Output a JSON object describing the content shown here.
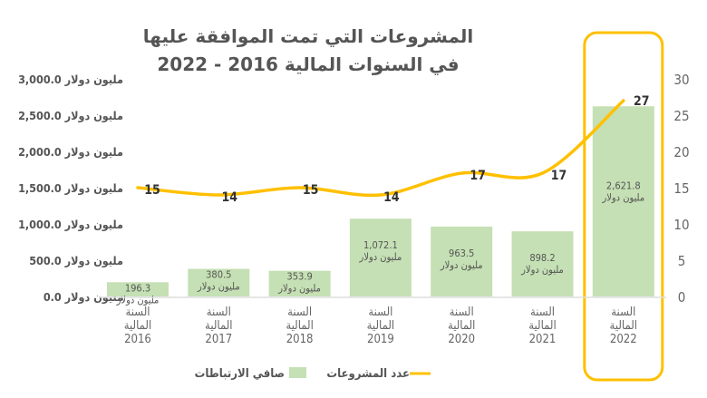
{
  "chart_data": {
    "type": "bar+line",
    "title": [
      "المشروعات التي تمت الموافقة عليها",
      "في السنوات المالية 2016 - 2022"
    ],
    "categories": [
      [
        "السنة",
        "المالية",
        "2016"
      ],
      [
        "السنة",
        "المالية",
        "2017"
      ],
      [
        "السنة",
        "المالية",
        "2018"
      ],
      [
        "السنة",
        "المالية",
        "2019"
      ],
      [
        "السنة",
        "المالية",
        "2020"
      ],
      [
        "السنة",
        "المالية",
        "2021"
      ],
      [
        "السنة",
        "المالية",
        "2022"
      ]
    ],
    "series": [
      {
        "name": "صافي الارتباطات",
        "type": "bar",
        "axis": "left",
        "color": "#c5e0b4",
        "values": [
          196.3,
          380.5,
          353.9,
          1072.1,
          963.5,
          898.2,
          2621.8
        ],
        "labels": [
          "196.3",
          "380.5",
          "353.9",
          "1,072.1",
          "963.5",
          "898.2",
          "2,621.8"
        ],
        "unit_label": "مليون دولار"
      },
      {
        "name": "عدد المشروعات",
        "type": "line",
        "axis": "right",
        "color": "#ffc000",
        "values": [
          15,
          14,
          15,
          14,
          17,
          17,
          27
        ]
      }
    ],
    "left_axis": {
      "range": [
        0,
        3000
      ],
      "ticks": [
        "0.0 مليون دولار",
        "500.0 مليون دولار",
        "1,000.0 مليون دولار",
        "1,500.0 مليون دولار",
        "2,000.0 مليون دولار",
        "2,500.0 مليون دولار",
        "3,000.0 مليون دولار"
      ]
    },
    "right_axis": {
      "range": [
        0,
        30
      ],
      "ticks": [
        "0",
        "5",
        "10",
        "15",
        "20",
        "25",
        "30"
      ]
    },
    "highlight_category": 6,
    "highlight_color": "#ffc000",
    "grid": false,
    "legend_position": "bottom"
  }
}
